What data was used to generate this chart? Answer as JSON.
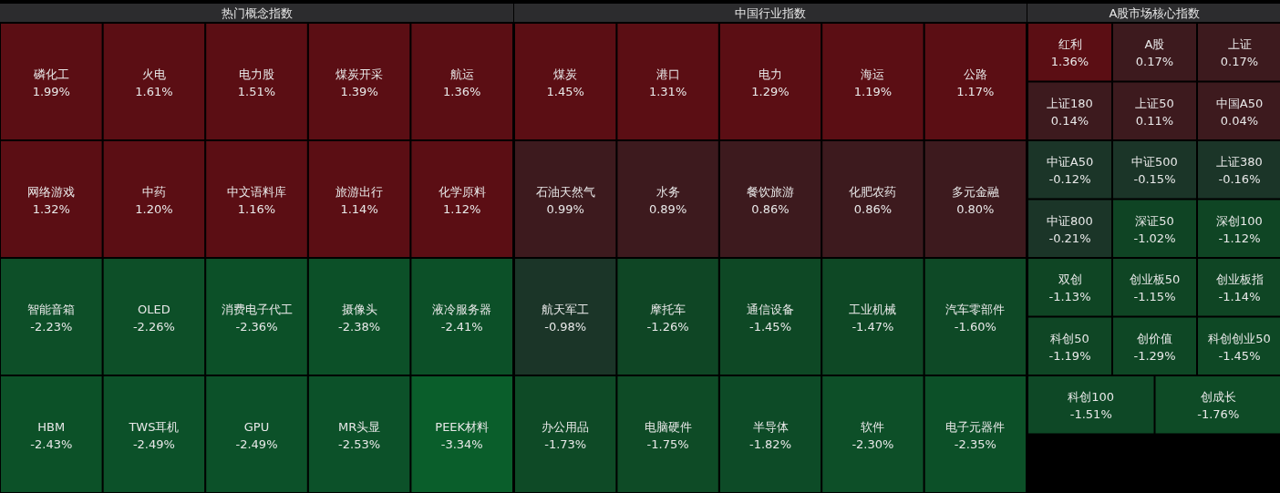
{
  "chart_data": [
    {
      "type": "other",
      "title": "热门概念指数",
      "categories": [
        "磷化工",
        "火电",
        "电力股",
        "煤炭开采",
        "航运",
        "网络游戏",
        "中药",
        "中文语料库",
        "旅游出行",
        "化学原料",
        "智能音箱",
        "OLED",
        "消费电子代工",
        "摄像头",
        "液冷服务器",
        "HBM",
        "TWS耳机",
        "GPU",
        "MR头显",
        "PEEK材料"
      ],
      "values": [
        1.99,
        1.61,
        1.51,
        1.39,
        1.36,
        1.32,
        1.2,
        1.16,
        1.14,
        1.12,
        -2.23,
        -2.26,
        -2.36,
        -2.38,
        -2.41,
        -2.43,
        -2.49,
        -2.49,
        -2.53,
        -3.34
      ],
      "value_labels": [
        "1.99%",
        "1.61%",
        "1.51%",
        "1.39%",
        "1.36%",
        "1.32%",
        "1.20%",
        "1.16%",
        "1.14%",
        "1.12%",
        "-2.23%",
        "-2.26%",
        "-2.36%",
        "-2.38%",
        "-2.41%",
        "-2.43%",
        "-2.49%",
        "-2.49%",
        "-2.53%",
        "-3.34%"
      ]
    },
    {
      "type": "other",
      "title": "中国行业指数",
      "categories": [
        "煤炭",
        "港口",
        "电力",
        "海运",
        "公路",
        "石油天然气",
        "水务",
        "餐饮旅游",
        "化肥农药",
        "多元金融",
        "航天军工",
        "摩托车",
        "通信设备",
        "工业机械",
        "汽车零部件",
        "办公用品",
        "电脑硬件",
        "半导体",
        "软件",
        "电子元器件"
      ],
      "values": [
        1.45,
        1.31,
        1.29,
        1.19,
        1.17,
        0.99,
        0.89,
        0.86,
        0.86,
        0.8,
        -0.98,
        -1.26,
        -1.45,
        -1.47,
        -1.6,
        -1.73,
        -1.75,
        -1.82,
        -2.3,
        -2.35
      ],
      "value_labels": [
        "1.45%",
        "1.31%",
        "1.29%",
        "1.19%",
        "1.17%",
        "0.99%",
        "0.89%",
        "0.86%",
        "0.86%",
        "0.80%",
        "-0.98%",
        "-1.26%",
        "-1.45%",
        "-1.47%",
        "-1.60%",
        "-1.73%",
        "-1.75%",
        "-1.82%",
        "-2.30%",
        "-2.35%"
      ]
    },
    {
      "type": "other",
      "title": "A股市场核心指数",
      "categories": [
        "红利",
        "A股",
        "上证",
        "上证180",
        "上证50",
        "中国A50",
        "中证A50",
        "中证500",
        "上证380",
        "中证800",
        "深证50",
        "深创100",
        "双创",
        "创业板50",
        "创业板指",
        "科创50",
        "创价值",
        "科创创业50",
        "科创100",
        "创成长"
      ],
      "values": [
        1.36,
        0.17,
        0.17,
        0.14,
        0.11,
        0.04,
        -0.12,
        -0.15,
        -0.16,
        -0.21,
        -1.02,
        -1.12,
        -1.13,
        -1.15,
        -1.14,
        -1.19,
        -1.29,
        -1.45,
        -1.51,
        -1.76
      ],
      "value_labels": [
        "1.36%",
        "0.17%",
        "0.17%",
        "0.14%",
        "0.11%",
        "0.04%",
        "-0.12%",
        "-0.15%",
        "-0.16%",
        "-0.21%",
        "-1.02%",
        "-1.12%",
        "-1.13%",
        "-1.15%",
        "-1.14%",
        "-1.19%",
        "-1.29%",
        "-1.45%",
        "-1.51%",
        "-1.76%"
      ]
    }
  ]
}
